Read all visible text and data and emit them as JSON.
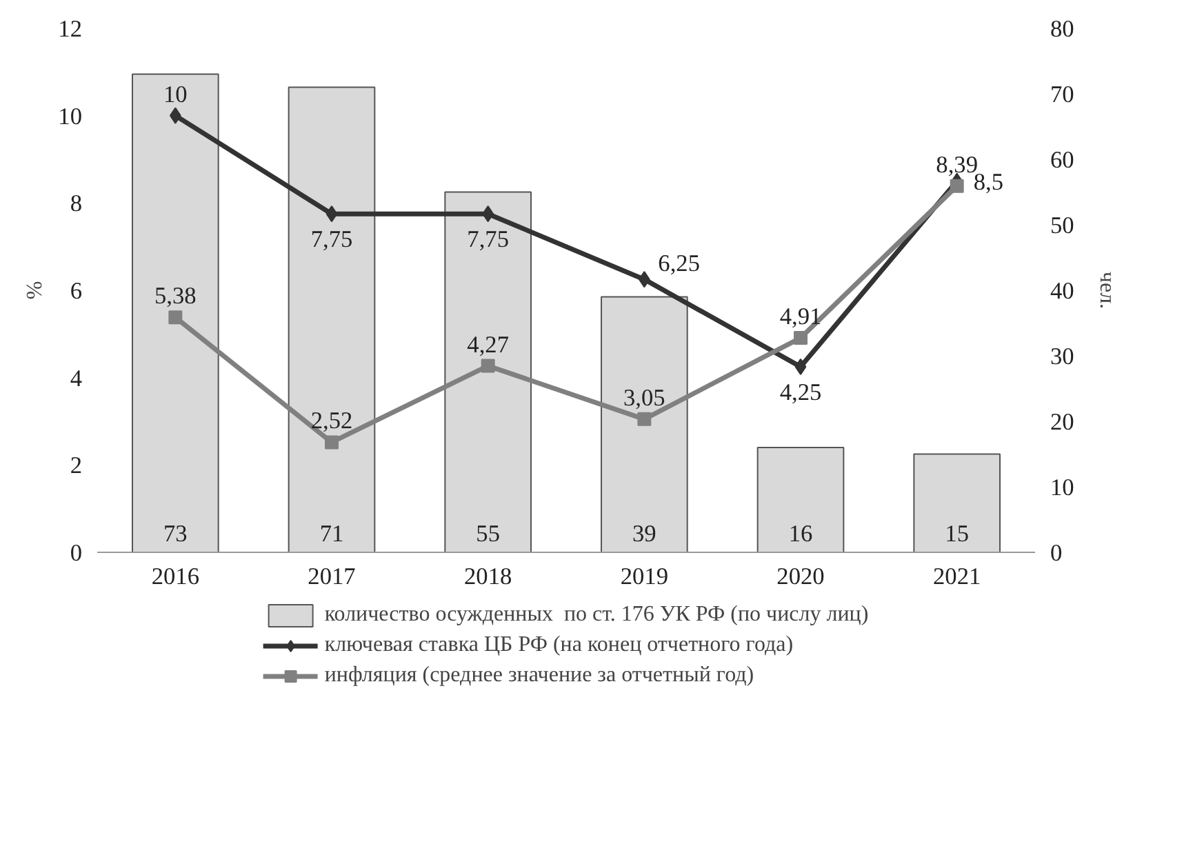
{
  "chart_data": {
    "type": "bar",
    "categories": [
      "2016",
      "2017",
      "2018",
      "2019",
      "2020",
      "2021"
    ],
    "ylabel": "%",
    "y2label": "чел.",
    "ylim": [
      0,
      12
    ],
    "yticks": [
      0,
      2,
      4,
      6,
      8,
      10,
      12
    ],
    "y2lim": [
      0,
      80
    ],
    "y2ticks": [
      0,
      10,
      20,
      30,
      40,
      50,
      60,
      70,
      80
    ],
    "grid": false,
    "legend": "bottom",
    "series": [
      {
        "name": "количество осужденных  по ст. 176 УК РФ (по числу лиц)",
        "axis": "y2",
        "color": "#d9d9d9",
        "values": [
          73,
          71,
          55,
          39,
          16,
          15
        ],
        "value_labels": [
          "73",
          "71",
          "55",
          "39",
          "16",
          "15"
        ]
      },
      {
        "name": "ключевая ставка ЦБ РФ (на конец отчетного года)",
        "type": "line",
        "marker": "diamond",
        "color": "#333333",
        "values": [
          10,
          7.75,
          7.75,
          6.25,
          4.25,
          8.5
        ],
        "value_labels": [
          "10",
          "7,75",
          "7,75",
          "6,25",
          "4,25",
          "8,5"
        ]
      },
      {
        "name": "инфляция (среднее значение за отчетный год)",
        "type": "line",
        "marker": "square",
        "color": "#808080",
        "values": [
          5.38,
          2.52,
          4.27,
          3.05,
          4.91,
          8.39
        ],
        "value_labels": [
          "5,38",
          "2,52",
          "4,27",
          "3,05",
          "4,91",
          "8,39"
        ]
      }
    ]
  }
}
